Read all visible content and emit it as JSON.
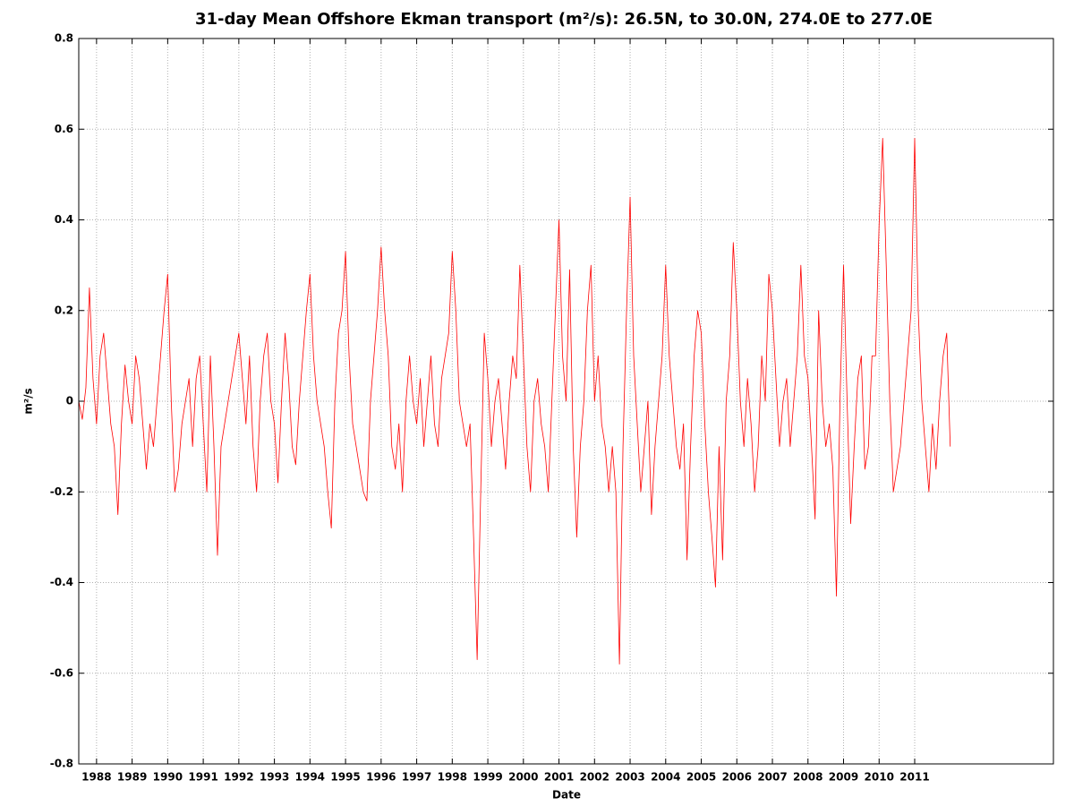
{
  "chart_data": {
    "type": "line",
    "title": "31-day Mean Offshore Ekman transport (m²/s): 26.5N, to 30.0N, 274.0E to 277.0E",
    "x_label": "Date",
    "y_label": "m²/s",
    "xlim": [
      1987.5,
      2014.9
    ],
    "xticks": [
      1988,
      1989,
      1990,
      1991,
      1992,
      1993,
      1994,
      1995,
      1996,
      1997,
      1998,
      1999,
      2000,
      2001,
      2002,
      2003,
      2004,
      2005,
      2006,
      2007,
      2008,
      2009,
      2010,
      2011
    ],
    "ylim": [
      -0.8,
      0.8
    ],
    "yticks": [
      -0.8,
      -0.6,
      -0.4,
      -0.2,
      0,
      0.2,
      0.4,
      0.6,
      0.8
    ],
    "grid": true,
    "x": [
      1987.5,
      1987.6,
      1987.7,
      1987.8,
      1987.9,
      1988.0,
      1988.1,
      1988.2,
      1988.3,
      1988.4,
      1988.5,
      1988.6,
      1988.7,
      1988.8,
      1988.9,
      1989.0,
      1989.1,
      1989.2,
      1989.3,
      1989.4,
      1989.5,
      1989.6,
      1989.7,
      1989.8,
      1989.9,
      1990.0,
      1990.1,
      1990.2,
      1990.3,
      1990.4,
      1990.5,
      1990.6,
      1990.7,
      1990.8,
      1990.9,
      1991.0,
      1991.1,
      1991.2,
      1991.3,
      1991.4,
      1991.5,
      1991.6,
      1991.7,
      1991.8,
      1991.9,
      1992.0,
      1992.1,
      1992.2,
      1992.3,
      1992.4,
      1992.5,
      1992.6,
      1992.7,
      1992.8,
      1992.9,
      1993.0,
      1993.1,
      1993.2,
      1993.3,
      1993.4,
      1993.5,
      1993.6,
      1993.7,
      1993.8,
      1993.9,
      1994.0,
      1994.1,
      1994.2,
      1994.3,
      1994.4,
      1994.5,
      1994.6,
      1994.7,
      1994.8,
      1994.9,
      1995.0,
      1995.1,
      1995.2,
      1995.3,
      1995.4,
      1995.5,
      1995.6,
      1995.7,
      1995.8,
      1995.9,
      1996.0,
      1996.1,
      1996.2,
      1996.3,
      1996.4,
      1996.5,
      1996.6,
      1996.7,
      1996.8,
      1996.9,
      1997.0,
      1997.1,
      1997.2,
      1997.3,
      1997.4,
      1997.5,
      1997.6,
      1997.7,
      1997.8,
      1997.9,
      1998.0,
      1998.1,
      1998.2,
      1998.3,
      1998.4,
      1998.5,
      1998.6,
      1998.7,
      1998.8,
      1998.9,
      1999.0,
      1999.1,
      1999.2,
      1999.3,
      1999.4,
      1999.5,
      1999.6,
      1999.7,
      1999.8,
      1999.9,
      2000.0,
      2000.1,
      2000.2,
      2000.3,
      2000.4,
      2000.5,
      2000.6,
      2000.7,
      2000.8,
      2000.9,
      2001.0,
      2001.1,
      2001.2,
      2001.3,
      2001.4,
      2001.5,
      2001.6,
      2001.7,
      2001.8,
      2001.9,
      2002.0,
      2002.1,
      2002.2,
      2002.3,
      2002.4,
      2002.5,
      2002.6,
      2002.7,
      2002.8,
      2002.9,
      2003.0,
      2003.1,
      2003.2,
      2003.3,
      2003.4,
      2003.5,
      2003.6,
      2003.7,
      2003.8,
      2003.9,
      2004.0,
      2004.1,
      2004.2,
      2004.3,
      2004.4,
      2004.5,
      2004.6,
      2004.7,
      2004.8,
      2004.9,
      2005.0,
      2005.1,
      2005.2,
      2005.3,
      2005.4,
      2005.5,
      2005.6,
      2005.7,
      2005.8,
      2005.9,
      2006.0,
      2006.1,
      2006.2,
      2006.3,
      2006.4,
      2006.5,
      2006.6,
      2006.7,
      2006.8,
      2006.9,
      2007.0,
      2007.1,
      2007.2,
      2007.3,
      2007.4,
      2007.5,
      2007.6,
      2007.7,
      2007.8,
      2007.9,
      2008.0,
      2008.1,
      2008.2,
      2008.3,
      2008.4,
      2008.5,
      2008.6,
      2008.7,
      2008.8,
      2008.9,
      2009.0,
      2009.1,
      2009.2,
      2009.3,
      2009.4,
      2009.5,
      2009.6,
      2009.7,
      2009.8,
      2009.9,
      2010.0,
      2010.1,
      2010.2,
      2010.3,
      2010.4,
      2010.5,
      2010.6,
      2010.7,
      2010.8,
      2010.9,
      2011.0,
      2011.1,
      2011.2,
      2011.3,
      2011.4,
      2011.5,
      2011.6,
      2011.7,
      2011.8,
      2011.9,
      2012.0
    ],
    "series": [
      {
        "color": "#ff0000",
        "values": [
          0.0,
          -0.04,
          0.03,
          0.25,
          0.05,
          -0.05,
          0.1,
          0.15,
          0.05,
          -0.05,
          -0.1,
          -0.25,
          -0.05,
          0.08,
          0.0,
          -0.05,
          0.1,
          0.05,
          -0.05,
          -0.15,
          -0.05,
          -0.1,
          0.0,
          0.1,
          0.2,
          0.28,
          0.0,
          -0.2,
          -0.15,
          -0.05,
          0.0,
          0.05,
          -0.1,
          0.05,
          0.1,
          -0.05,
          -0.2,
          0.1,
          -0.1,
          -0.34,
          -0.1,
          -0.05,
          0.0,
          0.05,
          0.1,
          0.15,
          0.05,
          -0.05,
          0.1,
          -0.1,
          -0.2,
          0.0,
          0.1,
          0.15,
          0.0,
          -0.05,
          -0.18,
          0.0,
          0.15,
          0.05,
          -0.1,
          -0.14,
          0.0,
          0.1,
          0.2,
          0.28,
          0.1,
          0.0,
          -0.05,
          -0.1,
          -0.2,
          -0.28,
          0.0,
          0.15,
          0.2,
          0.33,
          0.1,
          -0.05,
          -0.1,
          -0.15,
          -0.2,
          -0.22,
          0.0,
          0.1,
          0.2,
          0.34,
          0.2,
          0.1,
          -0.1,
          -0.15,
          -0.05,
          -0.2,
          0.0,
          0.1,
          0.0,
          -0.05,
          0.05,
          -0.1,
          0.0,
          0.1,
          -0.05,
          -0.1,
          0.05,
          0.1,
          0.15,
          0.33,
          0.2,
          0.0,
          -0.05,
          -0.1,
          -0.05,
          -0.3,
          -0.57,
          -0.2,
          0.15,
          0.05,
          -0.1,
          0.0,
          0.05,
          -0.05,
          -0.15,
          0.0,
          0.1,
          0.05,
          0.3,
          0.1,
          -0.1,
          -0.2,
          0.0,
          0.05,
          -0.05,
          -0.1,
          -0.2,
          0.0,
          0.2,
          0.4,
          0.1,
          0.0,
          0.29,
          -0.1,
          -0.3,
          -0.1,
          0.0,
          0.2,
          0.3,
          0.0,
          0.1,
          -0.05,
          -0.1,
          -0.2,
          -0.1,
          -0.2,
          -0.58,
          -0.1,
          0.2,
          0.45,
          0.1,
          -0.05,
          -0.2,
          -0.1,
          0.0,
          -0.25,
          -0.1,
          0.0,
          0.1,
          0.3,
          0.1,
          0.0,
          -0.1,
          -0.15,
          -0.05,
          -0.35,
          -0.1,
          0.1,
          0.2,
          0.15,
          -0.05,
          -0.2,
          -0.3,
          -0.41,
          -0.1,
          -0.35,
          0.0,
          0.1,
          0.35,
          0.2,
          0.0,
          -0.1,
          0.05,
          -0.05,
          -0.2,
          -0.1,
          0.1,
          0.0,
          0.28,
          0.2,
          0.05,
          -0.1,
          0.0,
          0.05,
          -0.1,
          0.0,
          0.1,
          0.3,
          0.1,
          0.05,
          -0.1,
          -0.26,
          0.2,
          0.0,
          -0.1,
          -0.05,
          -0.15,
          -0.43,
          0.0,
          0.3,
          0.0,
          -0.27,
          -0.1,
          0.05,
          0.1,
          -0.15,
          -0.1,
          0.1,
          0.1,
          0.39,
          0.58,
          0.3,
          0.0,
          -0.2,
          -0.15,
          -0.1,
          0.0,
          0.1,
          0.2,
          0.58,
          0.2,
          0.0,
          -0.1,
          -0.2,
          -0.05,
          -0.15,
          0.0,
          0.1,
          0.15,
          -0.1
        ]
      }
    ]
  }
}
